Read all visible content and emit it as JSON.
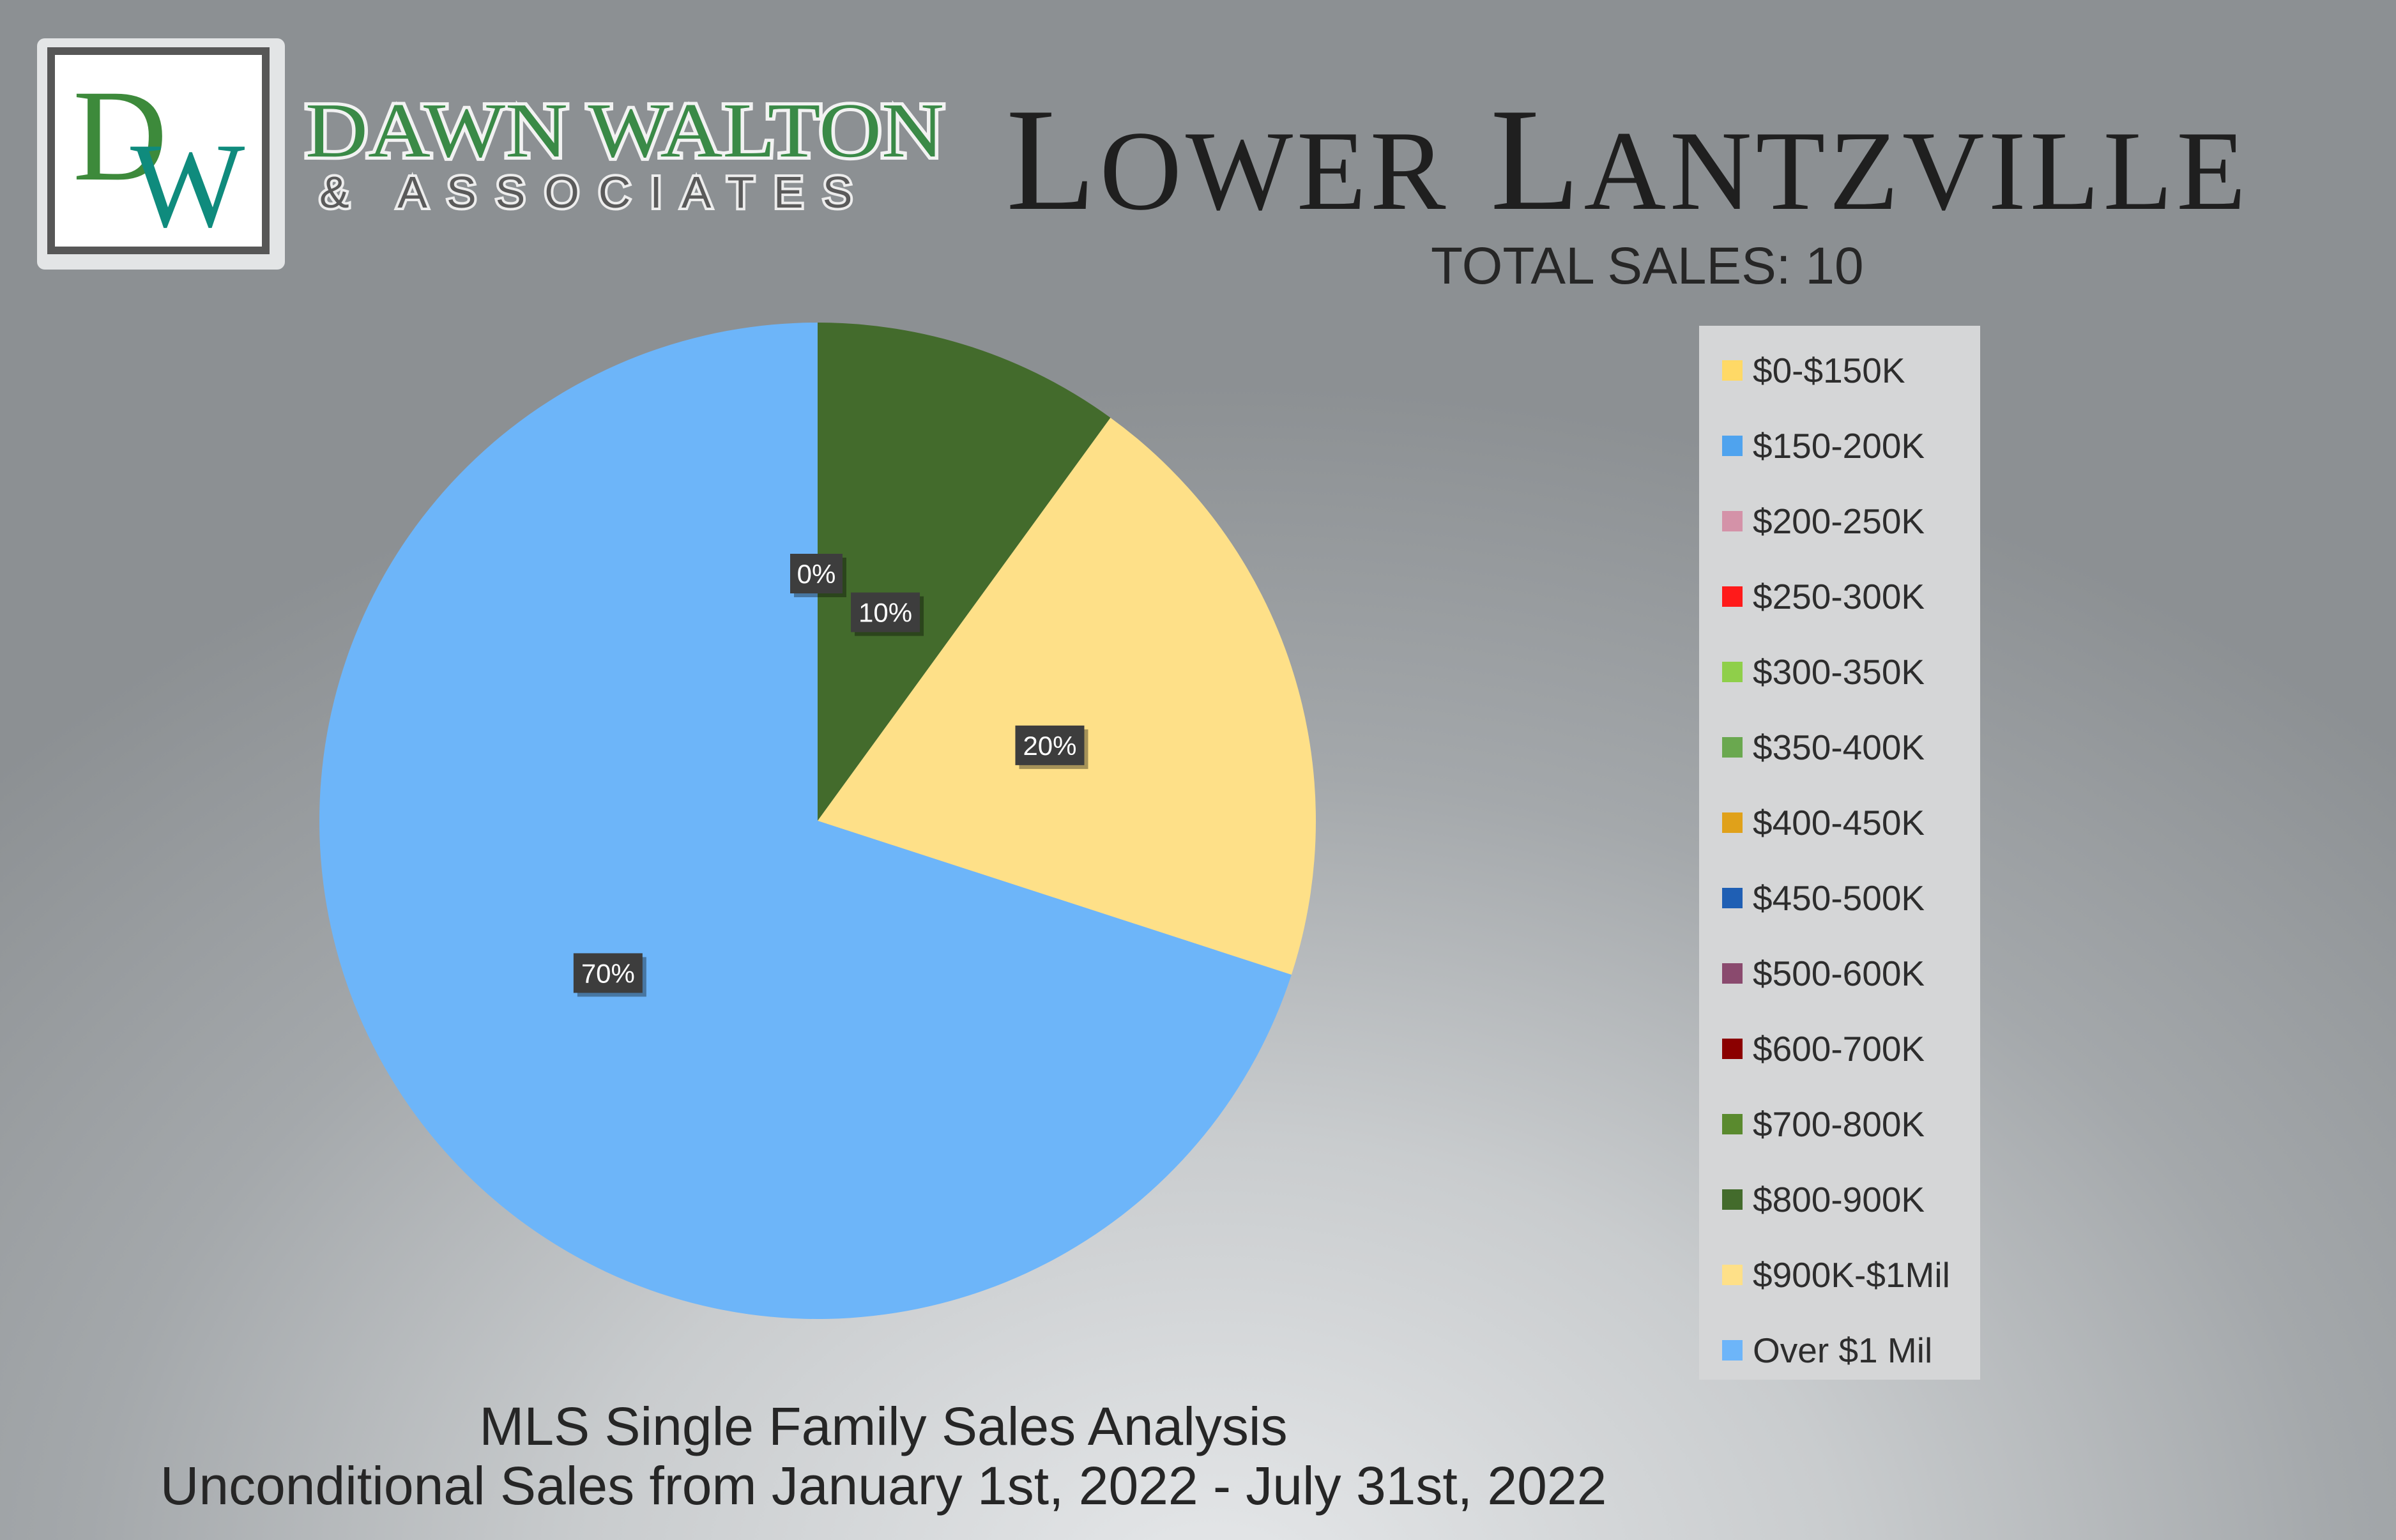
{
  "logo": {
    "monogram_d": "D",
    "monogram_w": "W",
    "brand_name": "DAWN WALTON",
    "brand_sub": "& ASSOCIATES",
    "colors": {
      "green": "#3d8a3b",
      "teal": "#0f8b7d",
      "frame": "#575757"
    }
  },
  "header": {
    "title_initial_1": "L",
    "title_rest_1": "OWER",
    "title_initial_2": "L",
    "title_rest_2": "ANTZVILLE",
    "total_sales": "TOTAL SALES: 10"
  },
  "footer": {
    "line1": "MLS Single Family Sales Analysis",
    "line2": "Unconditional Sales from January 1st, 2022 - July 31st, 2022"
  },
  "chart_data": {
    "type": "pie",
    "title": "",
    "categories": [
      "$0-$150K",
      "$150-200K",
      "$200-250K",
      "$250-300K",
      "$300-350K",
      "$350-400K",
      "$400-450K",
      "$450-500K",
      "$500-600K",
      "$600-700K",
      "$700-800K",
      "$800-900K",
      "$900K-$1Mil",
      "Over $1 Mil"
    ],
    "values": [
      0,
      0,
      0,
      0,
      0,
      0,
      0,
      0,
      0,
      0,
      0,
      10,
      20,
      70
    ],
    "colors": [
      "#ffd966",
      "#4fa3ee",
      "#d492a8",
      "#ff1a1a",
      "#8fcf4a",
      "#6aa84f",
      "#e0a11a",
      "#1f5fb4",
      "#8a4a6e",
      "#8b0000",
      "#5a8a2e",
      "#436b2c",
      "#fee088",
      "#6db5f9"
    ],
    "data_labels": [
      {
        "text": "0%",
        "category": "$700-800K"
      },
      {
        "text": "10%",
        "category": "$800-900K"
      },
      {
        "text": "20%",
        "category": "$900K-$1Mil"
      },
      {
        "text": "70%",
        "category": "Over $1 Mil"
      }
    ],
    "legend_position": "right"
  }
}
